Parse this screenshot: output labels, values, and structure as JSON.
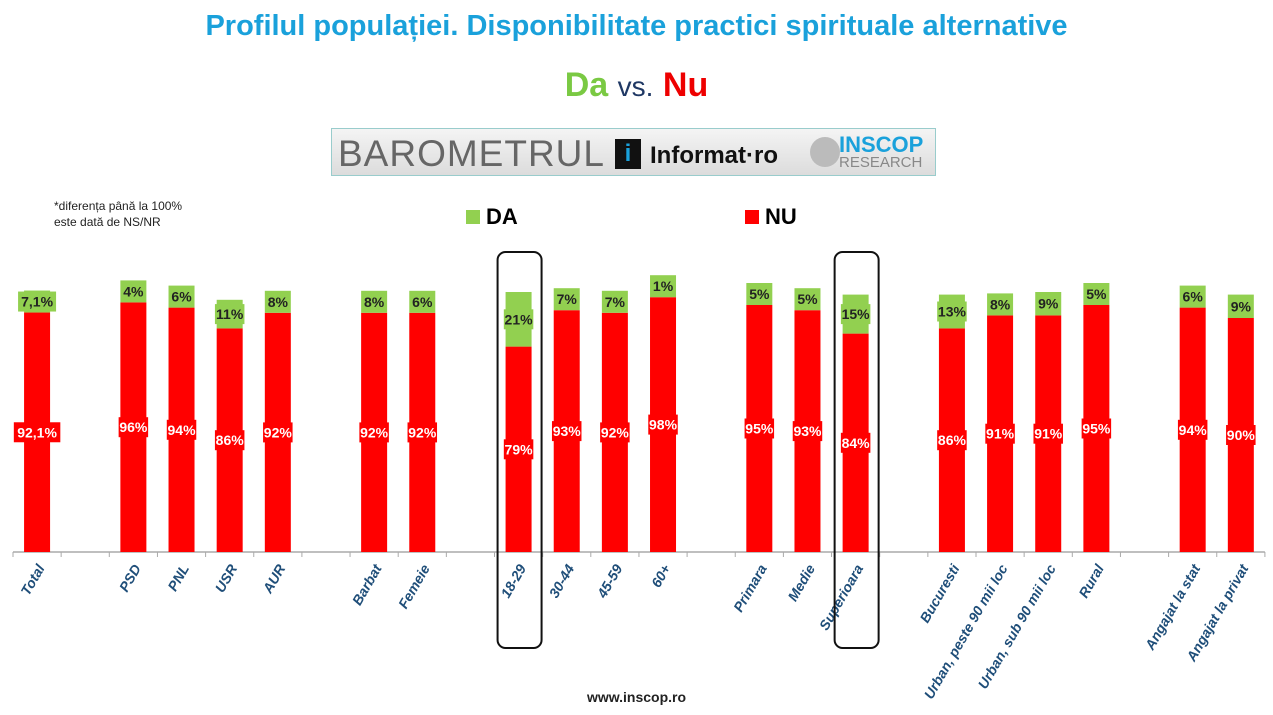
{
  "title": "Profilul populației. Disponibilitate practici spirituale alternative",
  "subtitle": {
    "da": "Da",
    "vs": "vs.",
    "nu": "Nu"
  },
  "logo": {
    "barometrul": "BAROMETRUL",
    "informat": "Informat·ro",
    "inscop": "INSCOP",
    "research": "RESEARCH"
  },
  "note": [
    "*diferența până la 100%",
    "este dată de NS/NR"
  ],
  "footer": "www.inscop.ro",
  "chart_data": {
    "type": "bar",
    "stacked": true,
    "legend": [
      {
        "name": "DA",
        "color": "#92d050"
      },
      {
        "name": "NU",
        "color": "#ff0000"
      }
    ],
    "categories": [
      {
        "name": "Total",
        "slot": 0,
        "nu": "92,1%",
        "da": "7,1%",
        "nuv": 92.1,
        "dav": 7.1
      },
      {
        "name": "PSD",
        "slot": 2,
        "nu": "96%",
        "da": "4%",
        "nuv": 96,
        "dav": 4
      },
      {
        "name": "PNL",
        "slot": 3,
        "nu": "94%",
        "da": "6%",
        "nuv": 94,
        "dav": 6
      },
      {
        "name": "USR",
        "slot": 4,
        "nu": "86%",
        "da": "11%",
        "nuv": 86,
        "dav": 11
      },
      {
        "name": "AUR",
        "slot": 5,
        "nu": "92%",
        "da": "8%",
        "nuv": 92,
        "dav": 8
      },
      {
        "name": "Barbat",
        "slot": 7,
        "nu": "92%",
        "da": "8%",
        "nuv": 92,
        "dav": 8
      },
      {
        "name": "Femeie",
        "slot": 8,
        "nu": "92%",
        "da": "6%",
        "nuv": 92,
        "dav": 6
      },
      {
        "name": "18-29",
        "slot": 10,
        "nu": "79%",
        "da": "21%",
        "nuv": 79,
        "dav": 21,
        "highlight": true
      },
      {
        "name": "30-44",
        "slot": 11,
        "nu": "93%",
        "da": "7%",
        "nuv": 93,
        "dav": 7
      },
      {
        "name": "45-59",
        "slot": 12,
        "nu": "92%",
        "da": "7%",
        "nuv": 92,
        "dav": 7
      },
      {
        "name": "60+",
        "slot": 13,
        "nu": "98%",
        "da": "1%",
        "nuv": 98,
        "dav": 1
      },
      {
        "name": "Primara",
        "slot": 15,
        "nu": "95%",
        "da": "5%",
        "nuv": 95,
        "dav": 5
      },
      {
        "name": "Medie",
        "slot": 16,
        "nu": "93%",
        "da": "5%",
        "nuv": 93,
        "dav": 5
      },
      {
        "name": "Superioara",
        "slot": 17,
        "nu": "84%",
        "da": "15%",
        "nuv": 84,
        "dav": 15,
        "highlight": true
      },
      {
        "name": "Bucuresti",
        "slot": 19,
        "nu": "86%",
        "da": "13%",
        "nuv": 86,
        "dav": 13
      },
      {
        "name": "Urban, peste 90 mii loc",
        "slot": 20,
        "nu": "91%",
        "da": "8%",
        "nuv": 91,
        "dav": 8
      },
      {
        "name": "Urban, sub 90 mii loc",
        "slot": 21,
        "nu": "91%",
        "da": "9%",
        "nuv": 91,
        "dav": 9
      },
      {
        "name": "Rural",
        "slot": 22,
        "nu": "95%",
        "da": "5%",
        "nuv": 95,
        "dav": 5
      },
      {
        "name": "Angajat la stat",
        "slot": 24,
        "nu": "94%",
        "da": "6%",
        "nuv": 94,
        "dav": 6
      },
      {
        "name": "Angajat la privat",
        "slot": 25,
        "nu": "90%",
        "da": "9%",
        "nuv": 90,
        "dav": 9
      }
    ],
    "ylim": [
      0,
      100
    ]
  }
}
